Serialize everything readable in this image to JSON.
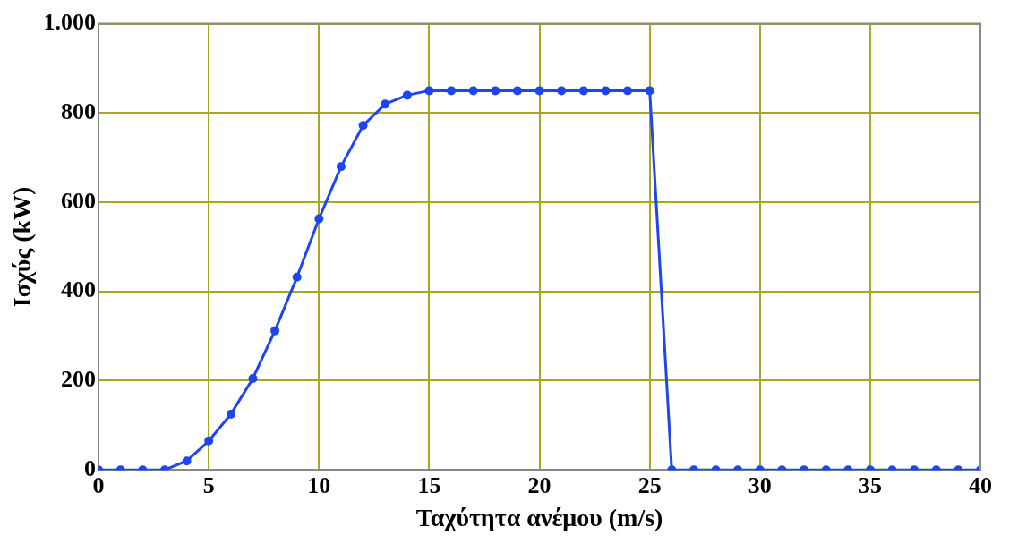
{
  "chart_data": {
    "type": "line",
    "xlabel": "Ταχύτητα ανέμου (m/s)",
    "ylabel": "Ισχύς (kW)",
    "xlim": [
      0,
      40
    ],
    "xticks": [
      0,
      5,
      10,
      15,
      20,
      25,
      30,
      35,
      40
    ],
    "ylim": [
      0,
      1000
    ],
    "yticks": [
      0,
      200,
      400,
      600,
      800,
      {
        "value": 1000,
        "label": "1.000"
      }
    ],
    "grid": true,
    "marker": "circle",
    "line_style": "solid",
    "legend": false,
    "series": [
      {
        "color": "#1f45f0",
        "x": [
          0,
          1,
          2,
          3,
          4,
          5,
          6,
          7,
          8,
          9,
          10,
          11,
          12,
          13,
          14,
          15,
          16,
          17,
          18,
          19,
          20,
          21,
          22,
          23,
          24,
          25,
          26,
          27,
          28,
          29,
          30,
          31,
          32,
          33,
          34,
          35,
          36,
          37,
          38,
          39,
          40
        ],
        "values": [
          0,
          0,
          0,
          0,
          20,
          65,
          125,
          205,
          312,
          432,
          563,
          680,
          772,
          820,
          840,
          850,
          850,
          850,
          850,
          850,
          850,
          850,
          850,
          850,
          850,
          850,
          0,
          0,
          0,
          0,
          0,
          0,
          0,
          0,
          0,
          0,
          0,
          0,
          0,
          0,
          0
        ]
      }
    ]
  }
}
